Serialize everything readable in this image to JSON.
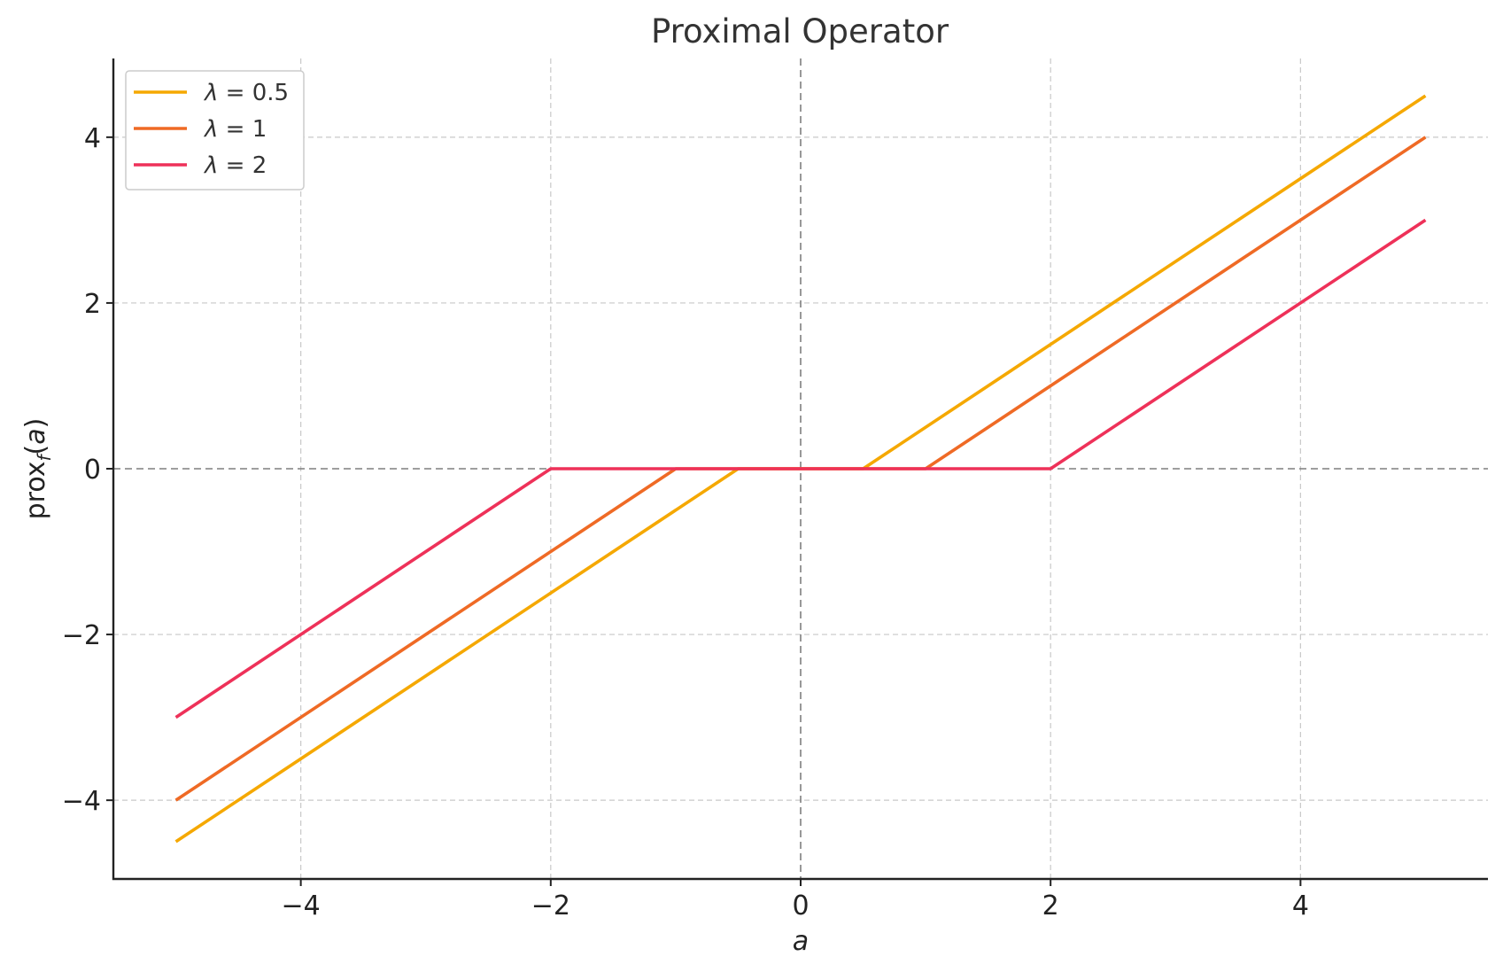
{
  "chart_data": {
    "type": "line",
    "title": "Proximal Operator",
    "xlabel": "a",
    "ylabel_main": "prox",
    "ylabel_sub": "f",
    "ylabel_arg_open": "(",
    "ylabel_arg": "a",
    "ylabel_arg_close": ")",
    "xlim": [
      -5.5,
      5.5
    ],
    "ylim": [
      -4.95,
      4.95
    ],
    "xticks": [
      -4,
      -2,
      0,
      2,
      4
    ],
    "yticks": [
      -4,
      -2,
      0,
      2,
      4
    ],
    "xtick_labels": [
      "−4",
      "−2",
      "0",
      "2",
      "4"
    ],
    "ytick_labels": [
      "−4",
      "−2",
      "0",
      "2",
      "4"
    ],
    "grid": true,
    "legend_position": "top-left",
    "series": [
      {
        "lambda_symbol": "λ",
        "legend_suffix": " = 0.5",
        "color": "#F5A800",
        "x": [
          -5,
          -0.5,
          0.5,
          5
        ],
        "y": [
          -4.5,
          0,
          0,
          4.5
        ]
      },
      {
        "lambda_symbol": "λ",
        "legend_suffix": " = 1",
        "color": "#EF6A25",
        "x": [
          -5,
          -1,
          1,
          5
        ],
        "y": [
          -4,
          0,
          0,
          4
        ]
      },
      {
        "lambda_symbol": "λ",
        "legend_suffix": " = 2",
        "color": "#EE3159",
        "x": [
          -5,
          -2,
          2,
          5
        ],
        "y": [
          -3,
          0,
          0,
          3
        ]
      }
    ]
  }
}
